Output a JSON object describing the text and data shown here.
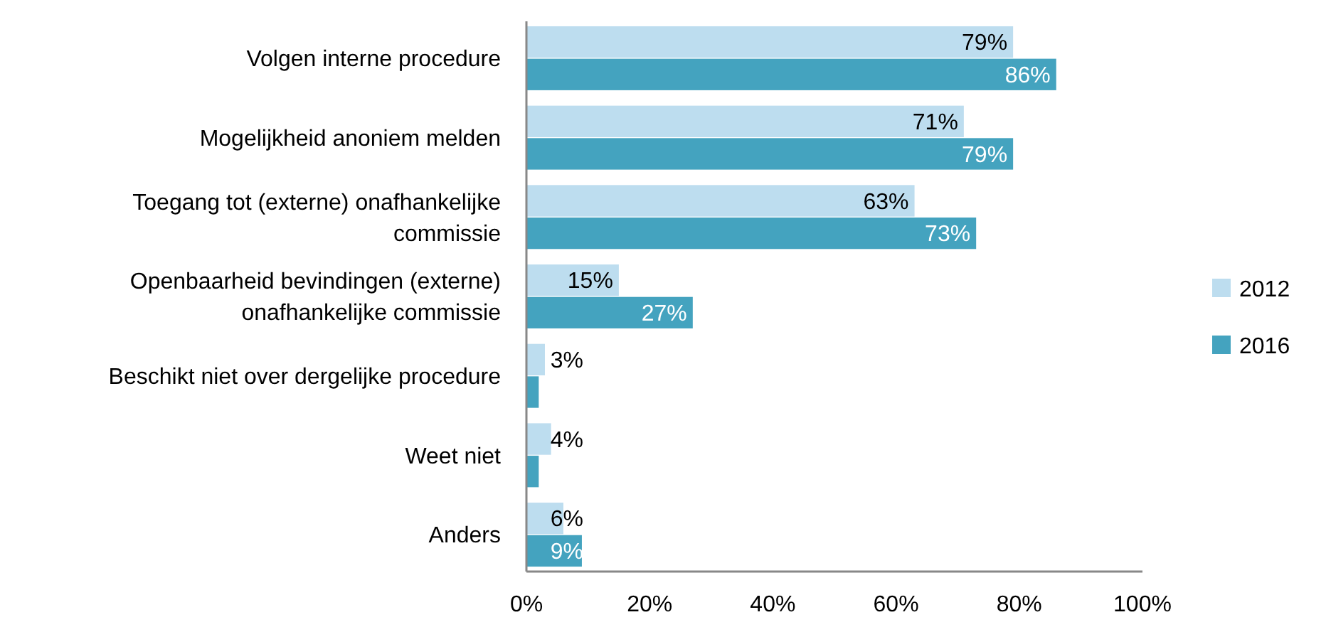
{
  "chart_data": {
    "type": "bar",
    "orientation": "horizontal",
    "categories": [
      "Volgen interne procedure",
      "Mogelijkheid anoniem melden",
      "Toegang tot (externe) onafhankelijke commissie",
      "Openbaarheid bevindingen (externe) onafhankelijke commissie",
      "Beschikt niet over dergelijke procedure",
      "Weet niet",
      "Anders"
    ],
    "series": [
      {
        "name": "2012",
        "color": "#bdddef",
        "values": [
          79,
          71,
          63,
          15,
          3,
          4,
          6
        ],
        "value_labels": [
          "79%",
          "71%",
          "63%",
          "15%",
          "3%",
          "4%",
          "6%"
        ]
      },
      {
        "name": "2016",
        "color": "#44a3bf",
        "values": [
          86,
          79,
          73,
          27,
          2,
          2,
          9
        ],
        "value_labels": [
          "86%",
          "79%",
          "73%",
          "27%",
          null,
          null,
          "9%"
        ]
      }
    ],
    "xlim": [
      0,
      100
    ],
    "xticks": [
      {
        "value": 0,
        "label": "0%"
      },
      {
        "value": 20,
        "label": "20%"
      },
      {
        "value": 40,
        "label": "40%"
      },
      {
        "value": 60,
        "label": "60%"
      },
      {
        "value": 80,
        "label": "80%"
      },
      {
        "value": 100,
        "label": "100%"
      }
    ],
    "grid": false,
    "legend": "right"
  }
}
